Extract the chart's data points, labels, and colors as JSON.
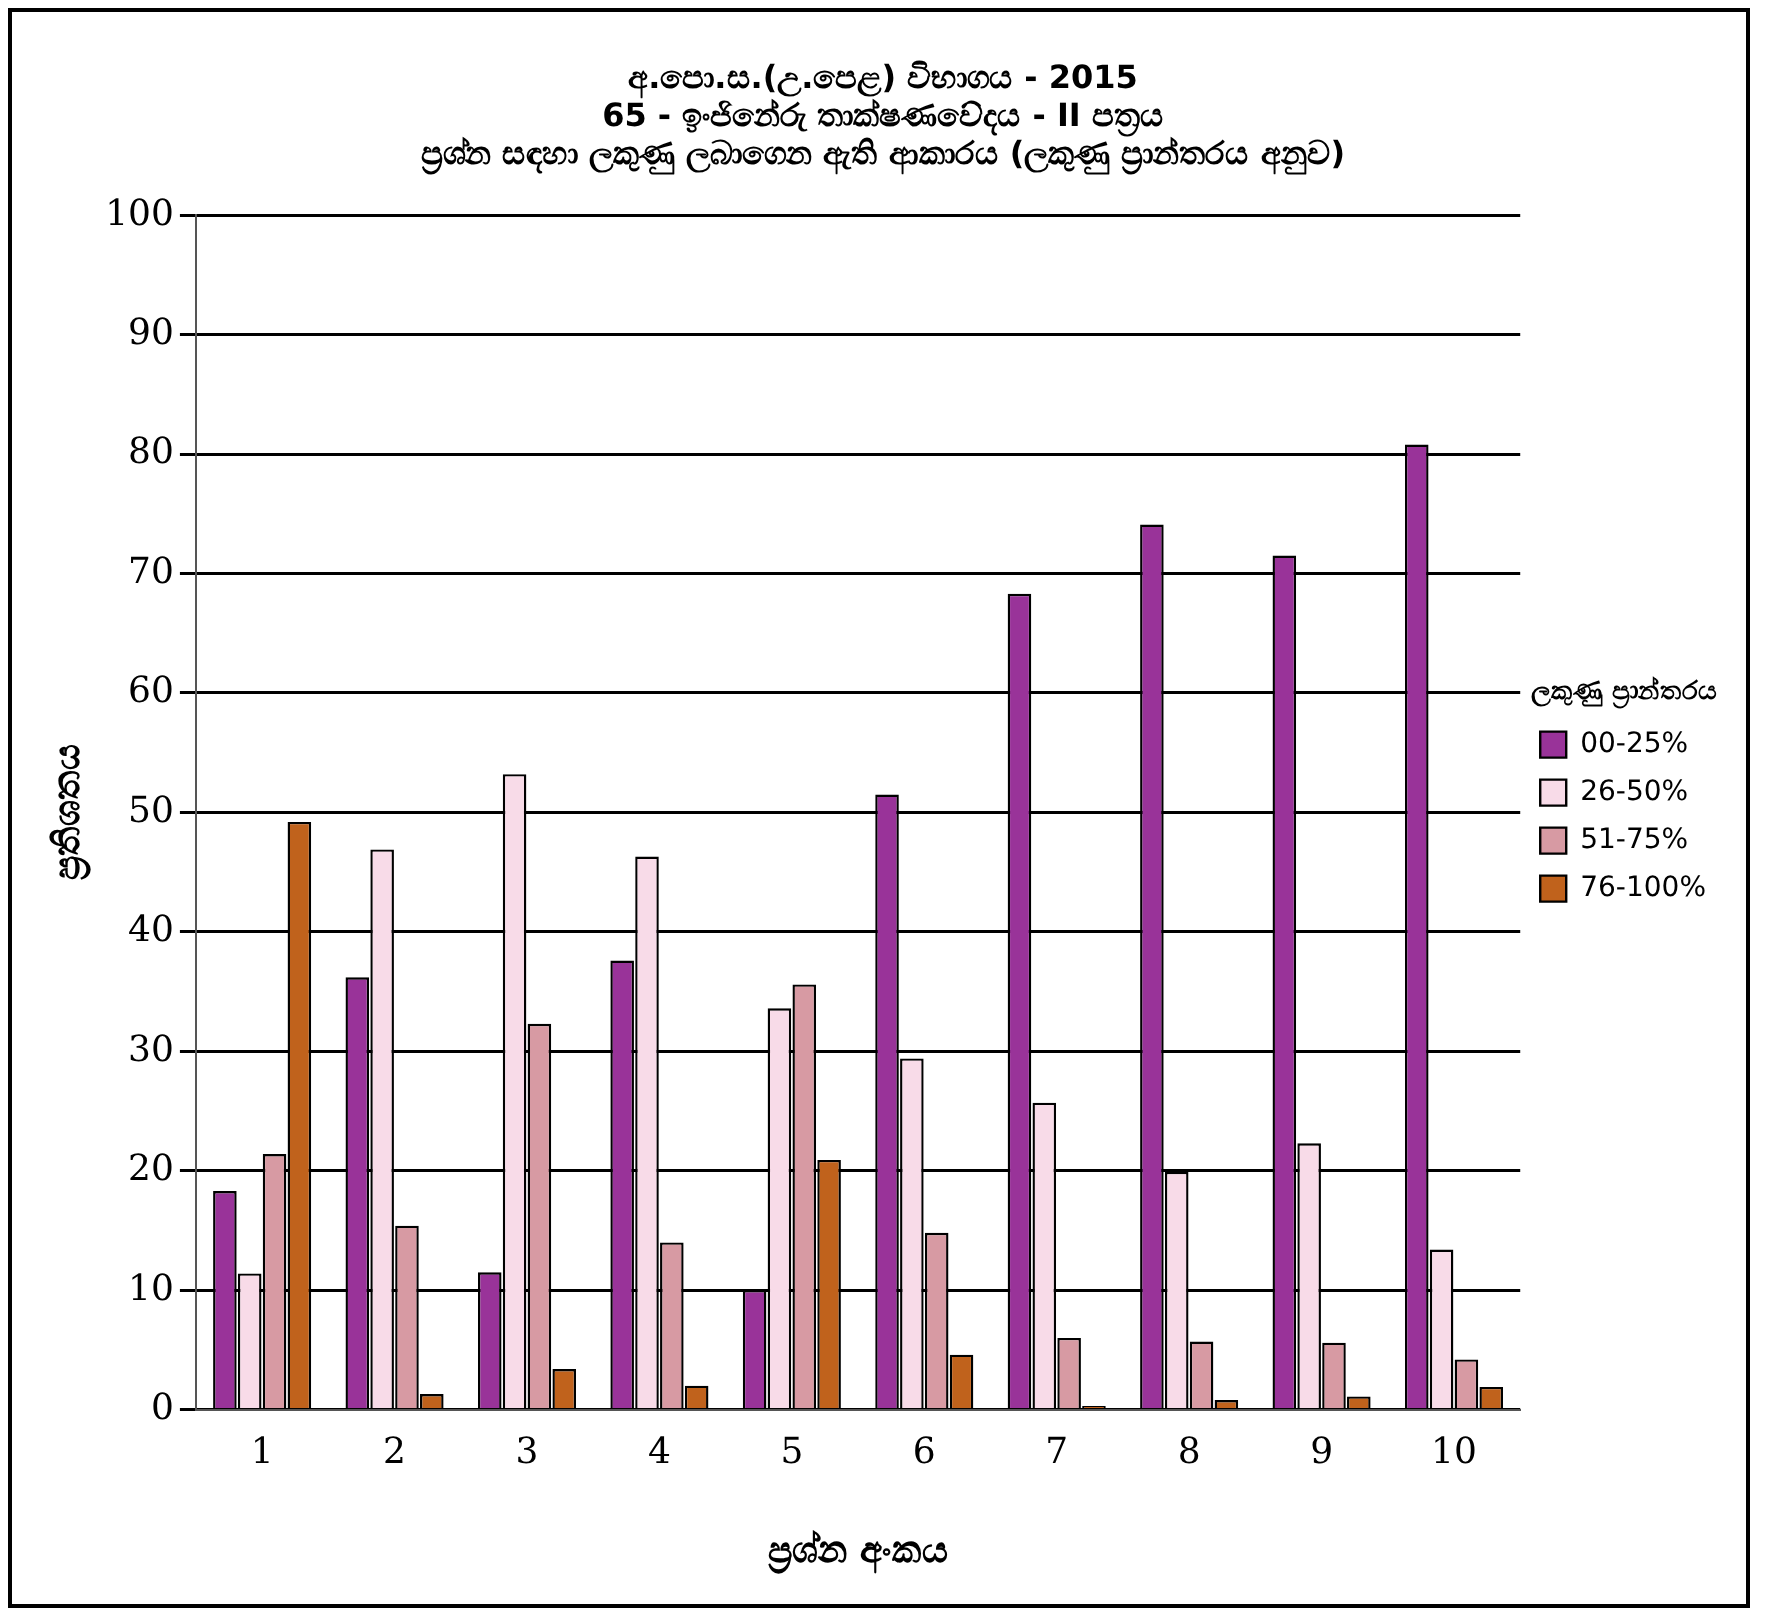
{
  "chart_data": {
    "type": "bar",
    "title": "අ.පො.ස.(උ.පෙළ) විභාගය - 2015\n65 - ඉංජිනේරු තාක්ෂණවේදය - II පත්‍රය\nප්‍රශ්න සඳහා ලකුණු ලබාගෙන ඇති ආකාරය (ලකුණු ප්‍රාන්තරය අනුව)",
    "xlabel": "ප්‍රශ්න අංකය",
    "ylabel": "ප්‍රතිශතය",
    "legend_title": "ලකුණු ප්‍රාන්තරය",
    "categories": [
      "1",
      "2",
      "3",
      "4",
      "5",
      "6",
      "7",
      "8",
      "9",
      "10"
    ],
    "series": [
      {
        "name": "00-25%",
        "color": "#993399",
        "values": [
          18.3,
          36.2,
          11.5,
          37.6,
          10.0,
          51.5,
          68.3,
          74.1,
          71.5,
          80.8
        ]
      },
      {
        "name": "26-50%",
        "color": "#f8dbe8",
        "values": [
          11.4,
          46.9,
          53.2,
          46.3,
          33.6,
          29.4,
          25.7,
          19.9,
          22.3,
          13.4
        ]
      },
      {
        "name": "51-75%",
        "color": "#d79aa3",
        "values": [
          21.4,
          15.4,
          32.3,
          14.0,
          35.6,
          14.8,
          6.0,
          5.7,
          5.6,
          4.2
        ]
      },
      {
        "name": "76-100%",
        "color": "#c0621c",
        "values": [
          49.2,
          1.3,
          3.4,
          2.0,
          20.9,
          4.6,
          0.3,
          0.8,
          1.1,
          1.9
        ]
      }
    ],
    "ylim": [
      0,
      100
    ],
    "yticks": [
      0,
      10,
      20,
      30,
      40,
      50,
      60,
      70,
      80,
      90,
      100
    ],
    "grid": "y",
    "legend": "right"
  }
}
